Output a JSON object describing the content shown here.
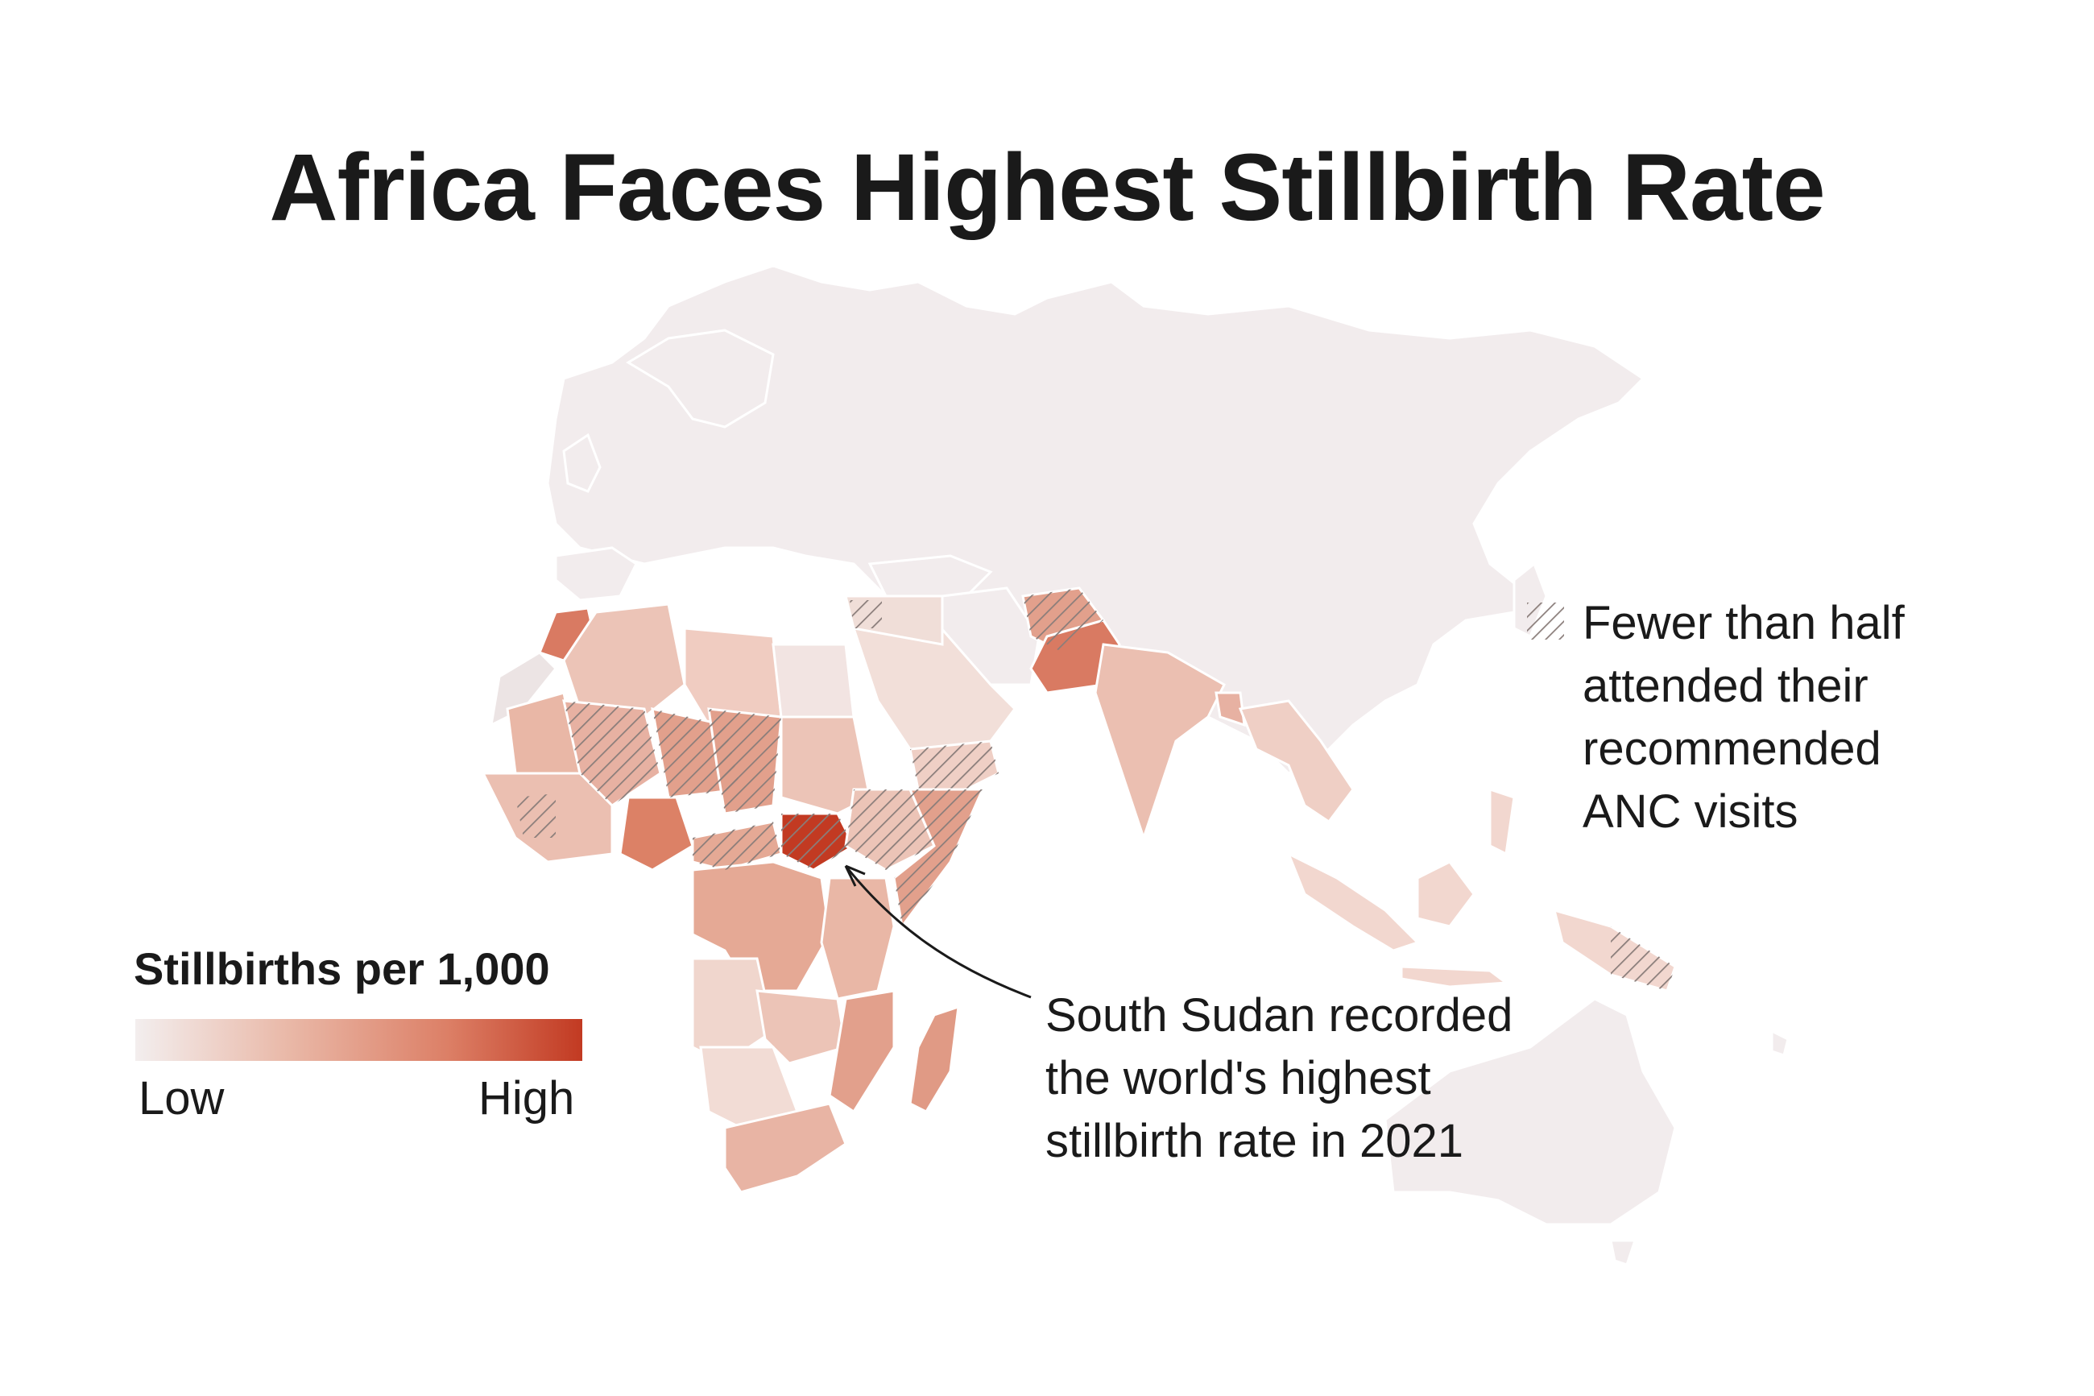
{
  "title": "Africa Faces Highest Stillbirth Rate",
  "legend": {
    "title": "Stillbirths per 1,000",
    "low_label": "Low",
    "high_label": "High",
    "color_low": "#f3eeee",
    "color_high": "#c23a22"
  },
  "hatch_note": {
    "lines": [
      "Fewer than half",
      "attended their",
      "recommended",
      "ANC visits"
    ]
  },
  "annotation": {
    "lines": [
      "South Sudan recorded",
      "the world's highest",
      "stillbirth rate in 2021"
    ],
    "country": "South Sudan",
    "year": "2021"
  },
  "colors": {
    "land_base": "#f2eced",
    "level1": "#f1d3ca",
    "level2": "#ebbfb1",
    "level3": "#e2a08c",
    "level4": "#d97a62",
    "level5": "#c23a22",
    "border": "#ffffff",
    "hatch": "#8a7d7a"
  }
}
